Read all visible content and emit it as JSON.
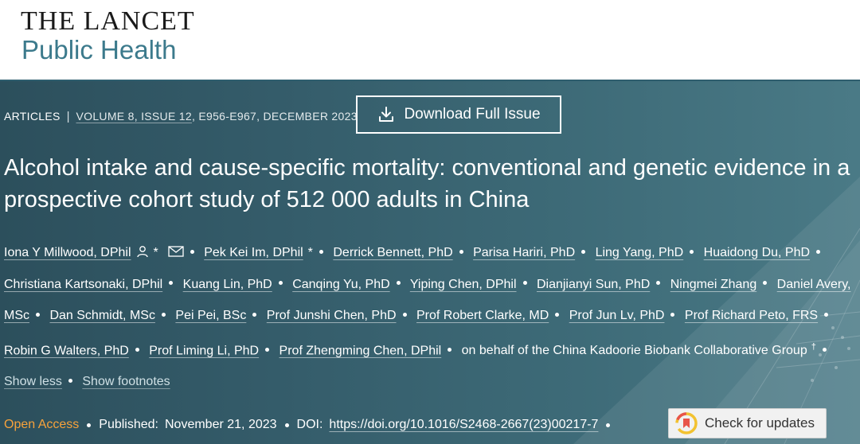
{
  "header": {
    "logo_line1": "THE LANCET",
    "logo_line2": "Public Health"
  },
  "article_meta": {
    "type": "ARTICLES",
    "separator": "|",
    "volume_link": "VOLUME 8, ISSUE 12",
    "pages_date": ", E956-E967, DECEMBER 2023"
  },
  "download_button": {
    "label": "Download Full Issue",
    "icon": "download-icon"
  },
  "title": "Alcohol intake and cause-specific mortality: conventional and genetic evidence in a prospective cohort study of 512 000 adults in China",
  "authors": [
    {
      "name": "Iona Y Millwood, DPhil",
      "marks": [
        "person-icon",
        "*",
        "mail-icon"
      ]
    },
    {
      "name": "Pek Kei Im, DPhil",
      "marks": [
        "*"
      ]
    },
    {
      "name": "Derrick Bennett, PhD",
      "marks": []
    },
    {
      "name": "Parisa Hariri, PhD",
      "marks": []
    },
    {
      "name": "Ling Yang, PhD",
      "marks": []
    },
    {
      "name": "Huaidong Du, PhD",
      "marks": []
    },
    {
      "name": "Christiana Kartsonaki, DPhil",
      "marks": []
    },
    {
      "name": "Kuang Lin, PhD",
      "marks": []
    },
    {
      "name": "Canqing Yu, PhD",
      "marks": []
    },
    {
      "name": "Yiping Chen, DPhil",
      "marks": []
    },
    {
      "name": "Dianjianyi Sun, PhD",
      "marks": []
    },
    {
      "name": "Ningmei Zhang",
      "marks": []
    },
    {
      "name": "Daniel Avery, MSc",
      "marks": []
    },
    {
      "name": "Dan Schmidt, MSc",
      "marks": []
    },
    {
      "name": "Pei Pei, BSc",
      "marks": []
    },
    {
      "name": "Prof Junshi Chen, PhD",
      "marks": []
    },
    {
      "name": "Prof Robert Clarke, MD",
      "marks": []
    },
    {
      "name": "Prof Jun Lv, PhD",
      "marks": []
    },
    {
      "name": "Prof Richard Peto, FRS",
      "marks": []
    },
    {
      "name": "Robin G Walters, PhD",
      "marks": []
    },
    {
      "name": "Prof Liming Li, PhD",
      "marks": []
    },
    {
      "name": "Prof Zhengming Chen, DPhil",
      "marks": []
    }
  ],
  "group_author": {
    "name": "on behalf of the China Kadoorie Biobank Collaborative Group",
    "mark": "†"
  },
  "toggles": {
    "show_less": "Show less",
    "show_footnotes": "Show footnotes"
  },
  "footer": {
    "access": "Open Access",
    "published_label": "Published:",
    "published_date": "November 21, 2023",
    "doi_label": "DOI:",
    "doi": "https://doi.org/10.1016/S2468-2667(23)00217-7"
  },
  "check_updates": {
    "label": "Check for updates",
    "icon": "check-updates-icon"
  },
  "colors": {
    "brand_teal": "#3c7a8c",
    "hero_bg": "#355d6b",
    "open_access": "#f7a23b",
    "text_on_dark": "#ffffff"
  }
}
